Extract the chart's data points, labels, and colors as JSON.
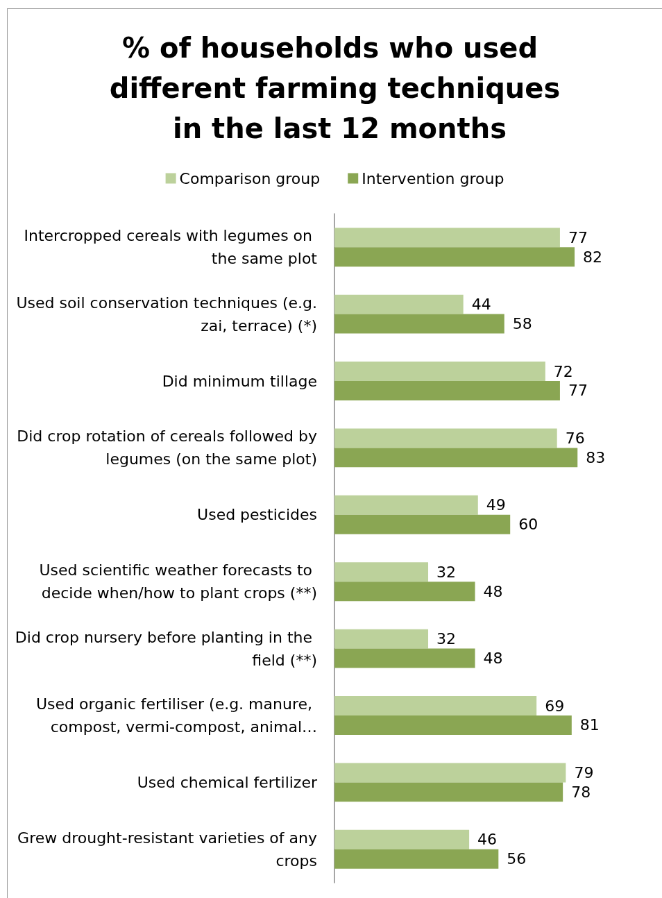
{
  "chart_data": {
    "type": "bar",
    "orientation": "horizontal",
    "title": "% of households who used different farming techniques in the last 12 months",
    "categories": [
      "Intercropped cereals with legumes on the same plot",
      "Used soil conservation techniques (e.g. zai, terrace) (*)",
      "Did minimum tillage",
      "Did crop rotation of cereals followed by legumes (on the same plot)",
      "Used pesticides",
      "Used scientific weather forecasts to decide when/how to plant crops (**)",
      "Did crop nursery before planting in the field (**)",
      "Used organic fertiliser (e.g. manure, compost, vermi-compost, animal…",
      "Used chemical fertilizer",
      "Grew drought-resistant varieties of any crops"
    ],
    "series": [
      {
        "name": "Comparison group",
        "color": "#bcd19b",
        "values": [
          77,
          44,
          72,
          76,
          49,
          32,
          32,
          69,
          79,
          46
        ]
      },
      {
        "name": "Intervention group",
        "color": "#8aa653",
        "values": [
          82,
          58,
          77,
          83,
          60,
          48,
          48,
          81,
          78,
          56
        ]
      }
    ],
    "data_labels": true,
    "legend": "top",
    "grid": false,
    "tick_labels": "y"
  }
}
